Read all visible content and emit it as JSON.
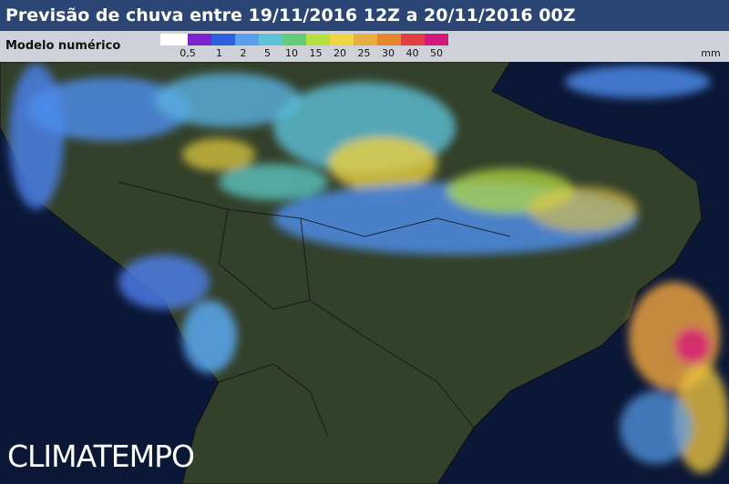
{
  "header": {
    "title": "Previsão de chuva entre 19/11/2016 12Z a 20/11/2016 00Z"
  },
  "legend": {
    "label": "Modelo numérico",
    "unit": "mm",
    "ticks": [
      "0,5",
      "1",
      "2",
      "5",
      "10",
      "15",
      "20",
      "25",
      "30",
      "40",
      "50"
    ],
    "colors": [
      "#ffffff",
      "#7a22cc",
      "#2f5ee0",
      "#5a9ff0",
      "#5cc4d8",
      "#64cc78",
      "#b4e040",
      "#f0d640",
      "#e8ae40",
      "#e8862e",
      "#e04040",
      "#d6187c"
    ]
  },
  "logo": {
    "text": "CLIMATEMPO"
  },
  "map": {
    "ocean_color": "#0b1736",
    "land_color": "#2f3b22"
  }
}
